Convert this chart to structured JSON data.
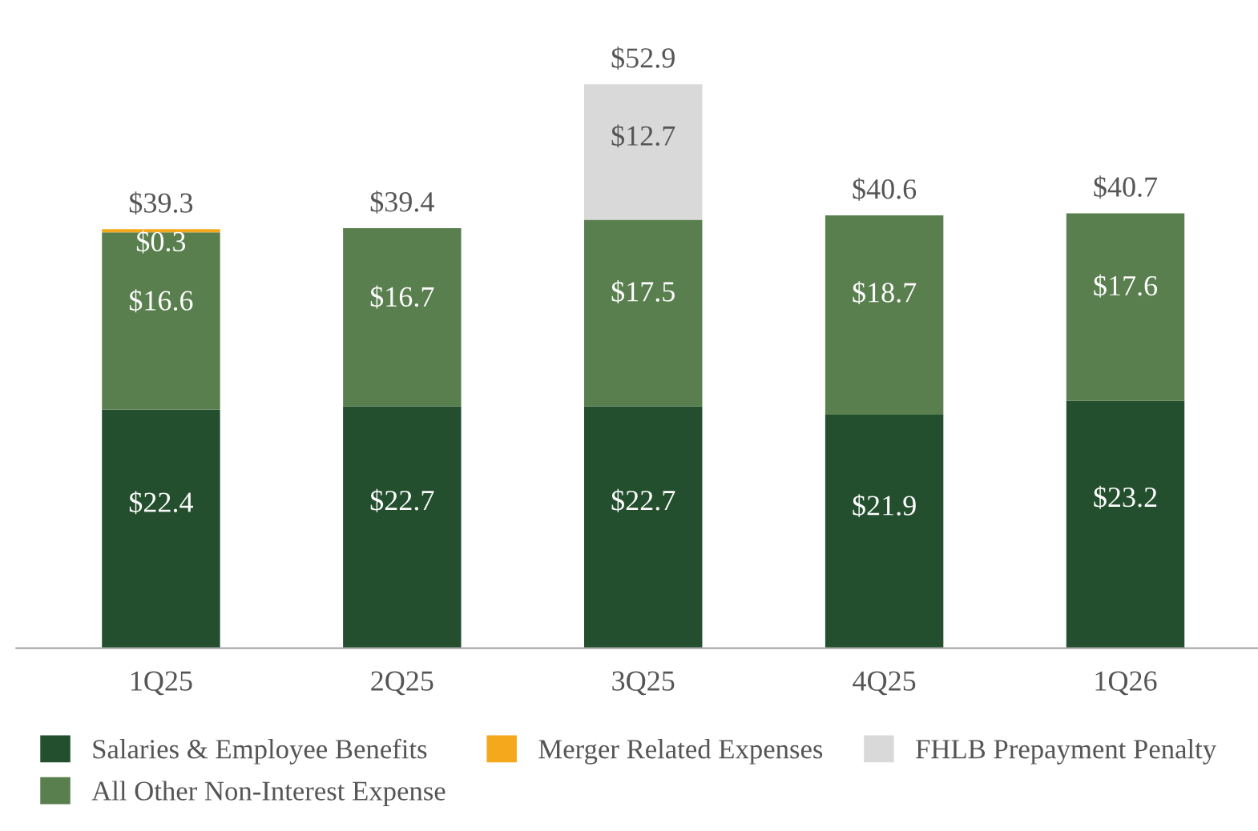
{
  "chart_data": {
    "type": "bar",
    "stacked": true,
    "categories": [
      "1Q25",
      "2Q25",
      "3Q25",
      "4Q25",
      "1Q26"
    ],
    "series": [
      {
        "name": "Salaries & Employee Benefits",
        "color": "#244f2e",
        "values": [
          22.4,
          22.7,
          22.7,
          21.9,
          23.2
        ],
        "value_labels": [
          "$22.4",
          "$22.7",
          "$22.7",
          "$21.9",
          "$23.2"
        ]
      },
      {
        "name": "All Other Non-Interest Expense",
        "color": "#5a7f4e",
        "values": [
          16.6,
          16.7,
          17.5,
          18.7,
          17.6
        ],
        "value_labels": [
          "$16.6",
          "$16.7",
          "$17.5",
          "$18.7",
          "$17.6"
        ]
      },
      {
        "name": "Merger Related Expenses",
        "color": "#f5a81c",
        "values": [
          0.3,
          null,
          null,
          null,
          null
        ],
        "value_labels": [
          "$0.3",
          null,
          null,
          null,
          null
        ]
      },
      {
        "name": "FHLB Prepayment Penalty",
        "color": "#d9d9d9",
        "values": [
          null,
          null,
          12.7,
          null,
          null
        ],
        "value_labels": [
          null,
          null,
          "$12.7",
          null,
          null
        ]
      }
    ],
    "totals": [
      "$39.3",
      "$39.4",
      "$52.9",
      "$40.6",
      "$40.7"
    ],
    "legend": "bottom",
    "grid": false
  }
}
